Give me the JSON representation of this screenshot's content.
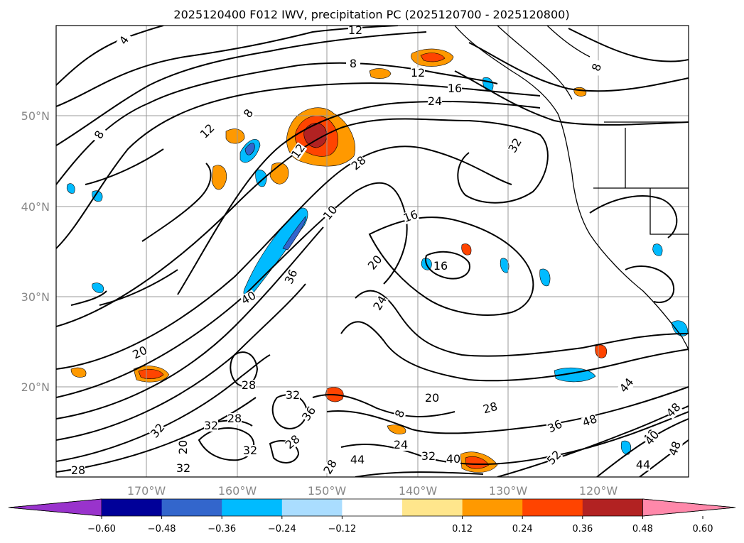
{
  "title": "2025120400 F012 IWV, precipitation PC (2025120700 - 2025120800)",
  "map": {
    "lat_labels": [
      "50°N",
      "40°N",
      "30°N",
      "20°N"
    ],
    "lon_labels": [
      "170°W",
      "160°W",
      "150°W",
      "140°W",
      "130°W",
      "120°W"
    ],
    "contour_labels": [
      "4",
      "8",
      "12",
      "12",
      "16",
      "24",
      "8",
      "12",
      "8",
      "8",
      "12",
      "28",
      "10",
      "24",
      "16",
      "32",
      "20",
      "16",
      "24",
      "40",
      "36",
      "20",
      "28",
      "28",
      "32",
      "36",
      "32",
      "32",
      "20",
      "20",
      "44",
      "48",
      "32",
      "28",
      "28",
      "40",
      "44",
      "32",
      "40",
      "36",
      "48",
      "52",
      "44",
      "40",
      "44",
      "48",
      "28",
      "32",
      "24",
      "28",
      "8"
    ]
  },
  "colorbar": {
    "colors": [
      "#9933cc",
      "#000099",
      "#3366cc",
      "#00bbff",
      "#aaddff",
      "#ffffff",
      "#ffe68c",
      "#ff9900",
      "#ff4400",
      "#b22222",
      "#ff88aa"
    ],
    "tick_labels": [
      "−0.60",
      "−0.48",
      "−0.36",
      "−0.24",
      "−0.12",
      "0.12",
      "0.24",
      "0.36",
      "0.48",
      "0.60"
    ]
  },
  "icons": {
    "title": "map-title",
    "colorbar": "colorbar"
  }
}
